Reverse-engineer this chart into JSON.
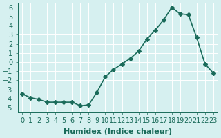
{
  "x": [
    0,
    1,
    2,
    3,
    4,
    5,
    6,
    7,
    8,
    9,
    10,
    11,
    12,
    13,
    14,
    15,
    16,
    17,
    18,
    19,
    20,
    21,
    22,
    23
  ],
  "y": [
    -3.5,
    -3.9,
    -4.1,
    -4.4,
    -4.4,
    -4.4,
    -4.4,
    -4.8,
    -4.7,
    -3.3,
    -1.6,
    -0.8,
    -0.2,
    0.4,
    1.2,
    2.5,
    3.5,
    4.6,
    6.0,
    5.3,
    5.2,
    2.7,
    -0.2,
    -1.2
  ],
  "line_color": "#1a6b5a",
  "marker": "D",
  "markersize": 3,
  "linewidth": 1.2,
  "xlabel": "Humidex (Indice chaleur)",
  "xlim": [
    -0.5,
    23.5
  ],
  "ylim": [
    -5.5,
    6.5
  ],
  "yticks": [
    -5,
    -4,
    -3,
    -2,
    -1,
    0,
    1,
    2,
    3,
    4,
    5,
    6
  ],
  "xticks": [
    0,
    1,
    2,
    3,
    4,
    5,
    6,
    7,
    8,
    9,
    10,
    11,
    12,
    13,
    14,
    15,
    16,
    17,
    18,
    19,
    20,
    21,
    22,
    23
  ],
  "background_color": "#d6f0f0",
  "grid_color": "#ffffff",
  "tick_color": "#1a6b5a",
  "label_color": "#1a6b5a",
  "font_size": 7
}
